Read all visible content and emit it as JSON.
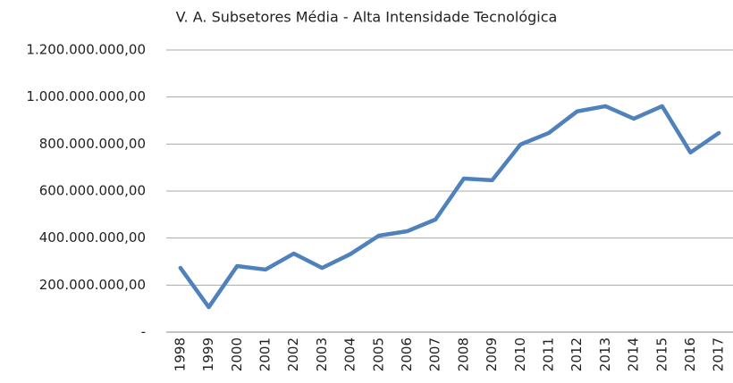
{
  "chart_data": {
    "type": "line",
    "title": "V. A. Subsetores Média - Alta Intensidade Tecnológica",
    "categories": [
      "1998",
      "1999",
      "2000",
      "2001",
      "2002",
      "2003",
      "2004",
      "2005",
      "2006",
      "2007",
      "2008",
      "2009",
      "2010",
      "2011",
      "2012",
      "2013",
      "2014",
      "2015",
      "2016",
      "2017"
    ],
    "series": [
      {
        "name": "V. A. Subsetores Média - Alta Intensidade Tecnológica",
        "color": "#4f81bd",
        "values": [
          273000000,
          106000000,
          281000000,
          266000000,
          334000000,
          273000000,
          332000000,
          410000000,
          429000000,
          479000000,
          653000000,
          646000000,
          798000000,
          847000000,
          939000000,
          961000000,
          908000000,
          961000000,
          764000000,
          847000000
        ]
      }
    ],
    "ylim": [
      0,
      1200000000
    ],
    "yticks": [
      {
        "value": 0,
        "label": "-"
      },
      {
        "value": 200000000,
        "label": "200.000.000,00"
      },
      {
        "value": 400000000,
        "label": "400.000.000,00"
      },
      {
        "value": 600000000,
        "label": "600.000.000,00"
      },
      {
        "value": 800000000,
        "label": "800.000.000,00"
      },
      {
        "value": 1000000000,
        "label": "1.000.000.000,00"
      },
      {
        "value": 1200000000,
        "label": "1.200.000.000,00"
      }
    ],
    "grid": true
  }
}
